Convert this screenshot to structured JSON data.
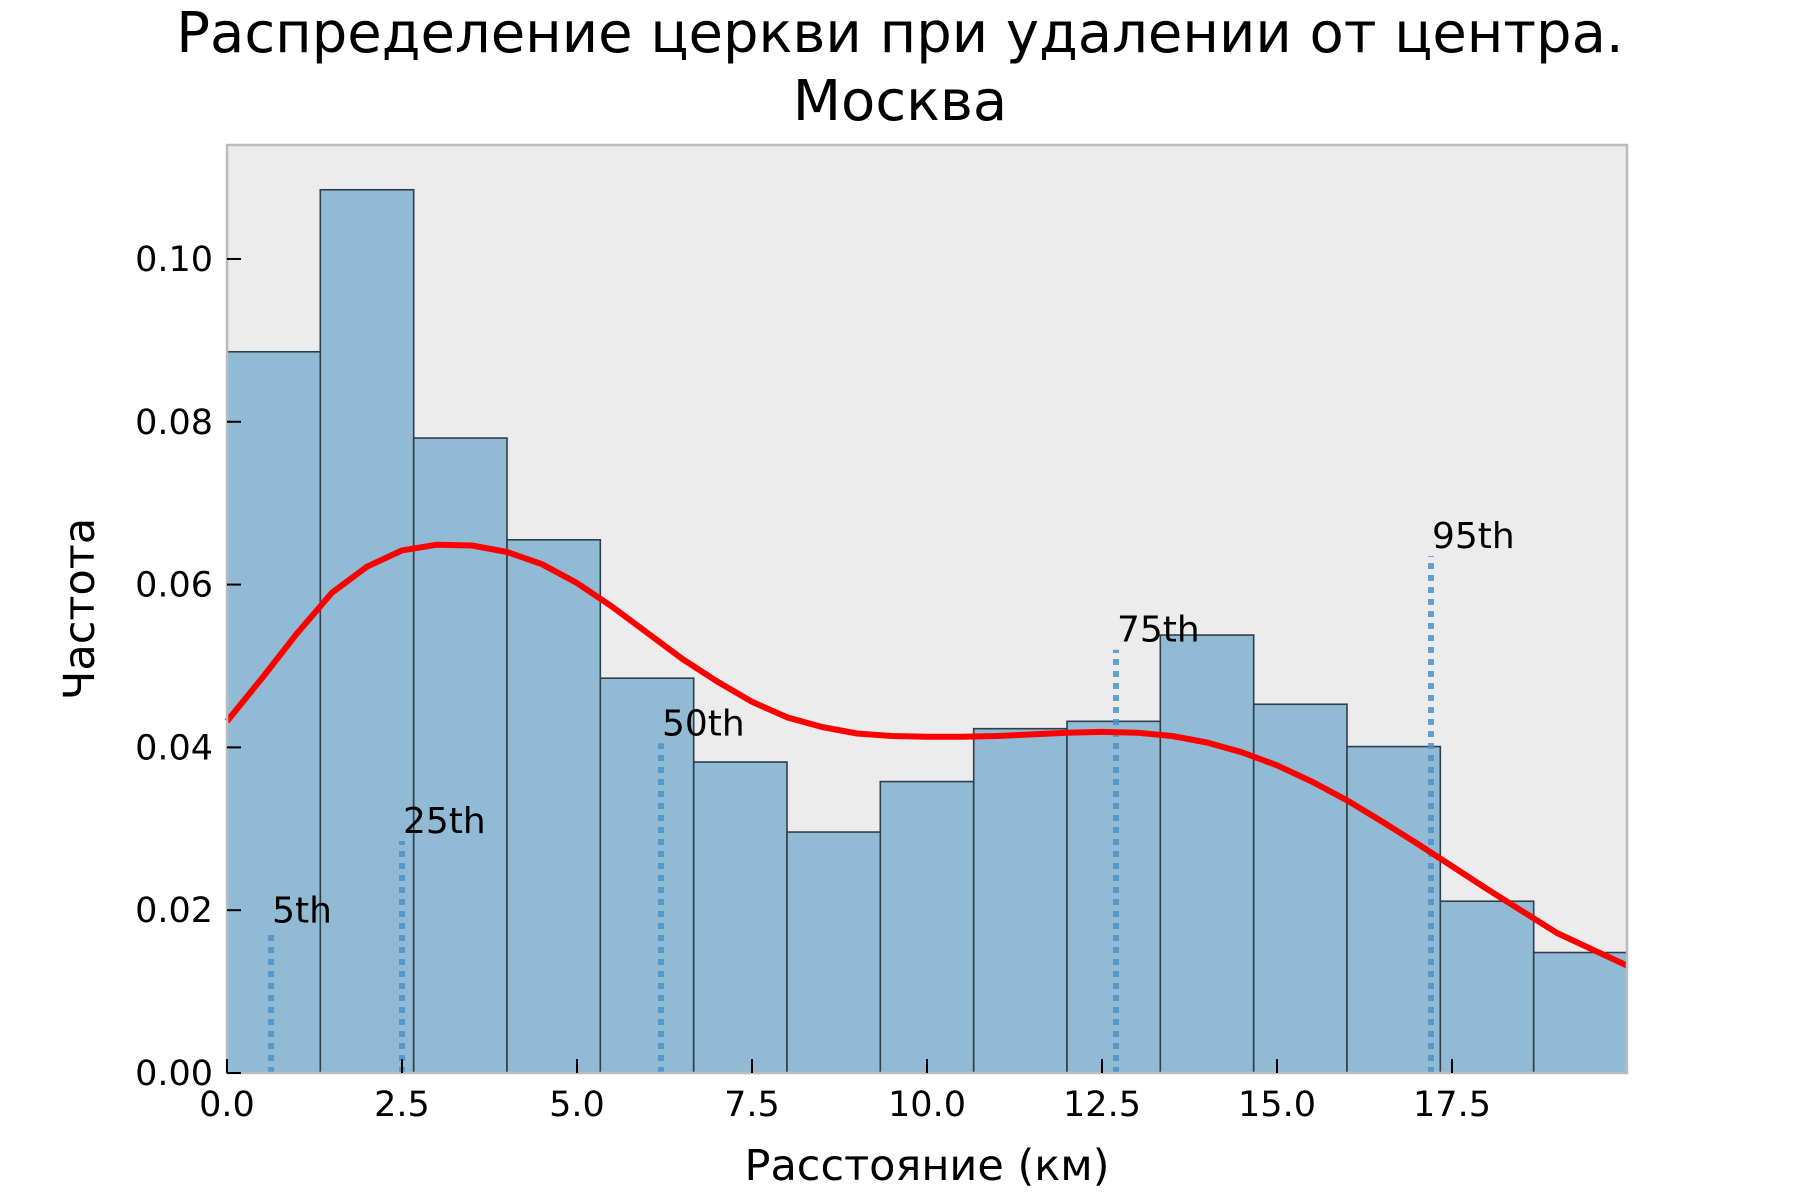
{
  "chart_data": {
    "type": "bar",
    "title": "Распределение церкви при удалении от центра.\nМосква",
    "xlabel": "Расстояние (км)",
    "ylabel": "Частота",
    "xlim": [
      0,
      20
    ],
    "ylim": [
      0,
      0.114
    ],
    "grid": false,
    "background": "#ececec",
    "bar_color": "#91bad5",
    "bar_edge_color": "#2f3f4a",
    "kde_color": "#ff0000",
    "percentile_color": "#4b93c8",
    "x_ticks": [
      {
        "value": 0.0,
        "label": "0.0"
      },
      {
        "value": 2.5,
        "label": "2.5"
      },
      {
        "value": 5.0,
        "label": "5.0"
      },
      {
        "value": 7.5,
        "label": "7.5"
      },
      {
        "value": 10.0,
        "label": "10.0"
      },
      {
        "value": 12.5,
        "label": "12.5"
      },
      {
        "value": 15.0,
        "label": "15.0"
      },
      {
        "value": 17.5,
        "label": "17.5"
      }
    ],
    "y_ticks": [
      {
        "value": 0.0,
        "label": "0.00"
      },
      {
        "value": 0.02,
        "label": "0.02"
      },
      {
        "value": 0.04,
        "label": "0.04"
      },
      {
        "value": 0.06,
        "label": "0.06"
      },
      {
        "value": 0.08,
        "label": "0.08"
      },
      {
        "value": 0.1,
        "label": "0.10"
      }
    ],
    "histogram": {
      "bin_edges": [
        0.0,
        1.333,
        2.667,
        4.0,
        5.333,
        6.667,
        8.0,
        9.333,
        10.667,
        12.0,
        13.333,
        14.667,
        16.0,
        17.333,
        18.667,
        20.0
      ],
      "values": [
        0.0886,
        0.1085,
        0.078,
        0.0655,
        0.0485,
        0.0382,
        0.0296,
        0.0358,
        0.0423,
        0.0432,
        0.0538,
        0.0453,
        0.0401,
        0.0211,
        0.0148
      ]
    },
    "kde": {
      "x": [
        0,
        0.5,
        1,
        1.5,
        2,
        2.5,
        3,
        3.5,
        4,
        4.5,
        5,
        5.5,
        6,
        6.5,
        7,
        7.5,
        8,
        8.5,
        9,
        9.5,
        10,
        10.5,
        11,
        11.5,
        12,
        12.5,
        13,
        13.5,
        14,
        14.5,
        15,
        15.5,
        16,
        16.5,
        17,
        17.5,
        18,
        18.5,
        19,
        19.5,
        20
      ],
      "y": [
        0.0432,
        0.0485,
        0.054,
        0.059,
        0.0622,
        0.0642,
        0.0649,
        0.0648,
        0.064,
        0.0625,
        0.0602,
        0.0573,
        0.0541,
        0.0509,
        0.0481,
        0.0456,
        0.0437,
        0.0425,
        0.0417,
        0.0414,
        0.0413,
        0.0413,
        0.0414,
        0.0416,
        0.0418,
        0.0419,
        0.0418,
        0.0414,
        0.0406,
        0.0394,
        0.0378,
        0.0358,
        0.0335,
        0.0309,
        0.0282,
        0.0254,
        0.0226,
        0.0199,
        0.0172,
        0.0152,
        0.0132
      ]
    },
    "percentiles": [
      {
        "label": "5th",
        "x": 0.63,
        "y_top": 0.0175
      },
      {
        "label": "25th",
        "x": 2.5,
        "y_top": 0.0285
      },
      {
        "label": "50th",
        "x": 6.2,
        "y_top": 0.0405
      },
      {
        "label": "75th",
        "x": 12.7,
        "y_top": 0.052
      },
      {
        "label": "95th",
        "x": 17.2,
        "y_top": 0.0635
      }
    ]
  }
}
